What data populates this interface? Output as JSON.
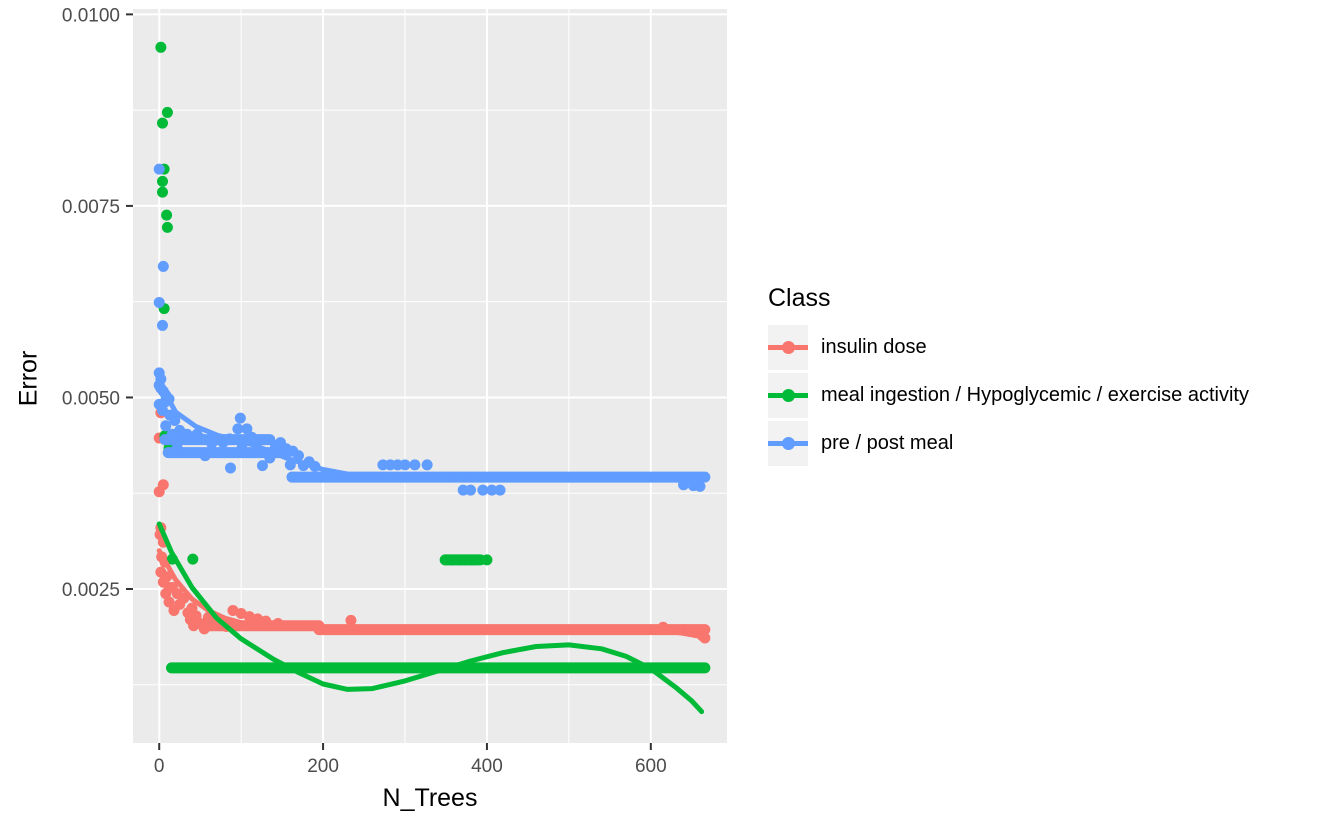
{
  "chart_data": {
    "type": "scatter",
    "title": "",
    "xlabel": "N_Trees",
    "ylabel": "Error",
    "x_ticks": [
      0,
      200,
      400,
      600
    ],
    "x_minor": [
      100,
      300,
      500
    ],
    "y_ticks": [
      0.0025,
      0.005,
      0.0075,
      0.01
    ],
    "y_tick_labels": [
      "0.0025",
      "0.0050",
      "0.0075",
      "0.0100"
    ],
    "y_minor": [
      0.00125,
      0.00375,
      0.00625,
      0.00875
    ],
    "xlim": [
      -32,
      693
    ],
    "ylim": [
      0.00049,
      0.01007
    ],
    "grid": true,
    "panel_bg": "#EBEBEB",
    "grid_color": "#FFFFFF",
    "tick_color": "#333333",
    "tick_label_color": "#4D4D4D",
    "legend": {
      "title": "Class",
      "position": "right",
      "entries": [
        {
          "label": "insulin dose",
          "color": "#F8766D"
        },
        {
          "label": "meal ingestion / Hypoglycemic / exercise activity",
          "color": "#00BA38"
        },
        {
          "label": "pre / post meal",
          "color": "#619CFF"
        }
      ]
    },
    "series": [
      {
        "name": "insulin dose",
        "color": "#F8766D",
        "points": [
          [
            2,
            0.0048
          ],
          [
            0,
            0.00447
          ],
          [
            5,
            0.00386
          ],
          [
            0,
            0.00377
          ],
          [
            2,
            0.0033
          ],
          [
            1,
            0.00321
          ],
          [
            5,
            0.00311
          ],
          [
            3,
            0.00292
          ],
          [
            7,
            0.00285
          ],
          [
            2,
            0.00272
          ],
          [
            9,
            0.00266
          ],
          [
            5,
            0.00259
          ],
          [
            12,
            0.00252
          ],
          [
            16,
            0.00252
          ],
          [
            8,
            0.00244
          ],
          [
            22,
            0.00244
          ],
          [
            12,
            0.00233
          ],
          [
            25,
            0.0023
          ],
          [
            30,
            0.00238
          ],
          [
            18,
            0.00222
          ],
          [
            40,
            0.00225
          ],
          [
            35,
            0.00219
          ],
          [
            45,
            0.00215
          ],
          [
            38,
            0.0021
          ],
          [
            42,
            0.00202
          ],
          [
            50,
            0.00205
          ],
          [
            55,
            0.00198
          ],
          [
            60,
            0.00213
          ],
          [
            68,
            0.00209
          ],
          [
            75,
            0.00205
          ],
          [
            82,
            0.00201
          ],
          [
            90,
            0.00222
          ],
          [
            100,
            0.00218
          ],
          [
            110,
            0.00214
          ],
          [
            120,
            0.00211
          ],
          [
            130,
            0.00208
          ],
          [
            145,
            0.00205
          ],
          [
            234,
            0.00209
          ],
          [
            615,
            0.002
          ],
          [
            640,
            0.00197
          ],
          [
            655,
            0.00193
          ],
          [
            663,
            0.00189
          ],
          [
            666,
            0.00186
          ]
        ],
        "dense_runs": [
          {
            "x1": 59,
            "x2": 195,
            "y": 0.00202
          },
          {
            "x1": 195,
            "x2": 666,
            "y": 0.00197
          }
        ],
        "smooth": [
          [
            0,
            0.003
          ],
          [
            20,
            0.00262
          ],
          [
            40,
            0.00237
          ],
          [
            60,
            0.00222
          ],
          [
            80,
            0.00212
          ],
          [
            100,
            0.00206
          ],
          [
            130,
            0.00201
          ],
          [
            160,
            0.00199
          ],
          [
            200,
            0.00198
          ],
          [
            260,
            0.00197
          ],
          [
            340,
            0.00197
          ],
          [
            420,
            0.00198
          ],
          [
            500,
            0.00199
          ],
          [
            560,
            0.00198
          ],
          [
            600,
            0.00196
          ],
          [
            635,
            0.00193
          ],
          [
            662,
            0.00188
          ]
        ]
      },
      {
        "name": "meal ingestion / Hypoglycemic / exercise activity",
        "color": "#00BA38",
        "points": [
          [
            2,
            0.00957
          ],
          [
            10,
            0.00872
          ],
          [
            4,
            0.00858
          ],
          [
            6,
            0.00798
          ],
          [
            4,
            0.00782
          ],
          [
            4,
            0.00768
          ],
          [
            9,
            0.00738
          ],
          [
            10,
            0.00722
          ],
          [
            6,
            0.00616
          ],
          [
            7,
            0.0045
          ],
          [
            12,
            0.00434
          ],
          [
            16,
            0.00289
          ],
          [
            41,
            0.00289
          ],
          [
            350,
            0.00288
          ],
          [
            358,
            0.00288
          ],
          [
            366,
            0.00288
          ],
          [
            374,
            0.00288
          ],
          [
            382,
            0.00288
          ],
          [
            400,
            0.00288
          ]
        ],
        "dense_runs": [
          {
            "x1": 15,
            "x2": 666,
            "y": 0.00147
          },
          {
            "x1": 349,
            "x2": 392,
            "y": 0.00288
          }
        ],
        "smooth": [
          [
            0,
            0.00335
          ],
          [
            15,
            0.00298
          ],
          [
            40,
            0.00252
          ],
          [
            70,
            0.00212
          ],
          [
            100,
            0.00185
          ],
          [
            140,
            0.00158
          ],
          [
            170,
            0.00141
          ],
          [
            200,
            0.00126
          ],
          [
            230,
            0.00119
          ],
          [
            260,
            0.0012
          ],
          [
            300,
            0.0013
          ],
          [
            340,
            0.00143
          ],
          [
            380,
            0.00156
          ],
          [
            420,
            0.00167
          ],
          [
            460,
            0.00175
          ],
          [
            500,
            0.00177
          ],
          [
            540,
            0.00172
          ],
          [
            570,
            0.00162
          ],
          [
            600,
            0.00146
          ],
          [
            630,
            0.00122
          ],
          [
            650,
            0.00104
          ],
          [
            662,
            0.0009
          ]
        ]
      },
      {
        "name": "pre / post meal",
        "color": "#619CFF",
        "points": [
          [
            0,
            0.00798
          ],
          [
            5,
            0.00671
          ],
          [
            0,
            0.00624
          ],
          [
            4,
            0.00594
          ],
          [
            0,
            0.00532
          ],
          [
            2,
            0.00524
          ],
          [
            0,
            0.00516
          ],
          [
            2,
            0.00512
          ],
          [
            5,
            0.00508
          ],
          [
            8,
            0.00503
          ],
          [
            12,
            0.00498
          ],
          [
            7,
            0.00494
          ],
          [
            0,
            0.00491
          ],
          [
            4,
            0.00483
          ],
          [
            13,
            0.00477
          ],
          [
            19,
            0.0047
          ],
          [
            8,
            0.00463
          ],
          [
            25,
            0.00457
          ],
          [
            16,
            0.00452
          ],
          [
            29,
            0.00448
          ],
          [
            34,
            0.00452
          ],
          [
            40,
            0.00446
          ],
          [
            46,
            0.00452
          ],
          [
            52,
            0.00446
          ],
          [
            22,
            0.00434
          ],
          [
            56,
            0.00424
          ],
          [
            64,
            0.0044
          ],
          [
            70,
            0.00445
          ],
          [
            78,
            0.00441
          ],
          [
            86,
            0.00446
          ],
          [
            87,
            0.00408
          ],
          [
            96,
            0.00459
          ],
          [
            99,
            0.00473
          ],
          [
            107,
            0.00459
          ],
          [
            101,
            0.00434
          ],
          [
            113,
            0.00448
          ],
          [
            117,
            0.00428
          ],
          [
            126,
            0.00411
          ],
          [
            135,
            0.00421
          ],
          [
            142,
            0.00437
          ],
          [
            148,
            0.00441
          ],
          [
            155,
            0.00433
          ],
          [
            160,
            0.00412
          ],
          [
            163,
            0.0043
          ],
          [
            170,
            0.00424
          ],
          [
            176,
            0.00411
          ],
          [
            183,
            0.00416
          ],
          [
            190,
            0.0041
          ],
          [
            273,
            0.00412
          ],
          [
            282,
            0.00412
          ],
          [
            291,
            0.00412
          ],
          [
            300,
            0.00412
          ],
          [
            312,
            0.00412
          ],
          [
            327,
            0.00412
          ],
          [
            371,
            0.00379
          ],
          [
            380,
            0.00379
          ],
          [
            395,
            0.00379
          ],
          [
            406,
            0.00379
          ],
          [
            416,
            0.00379
          ],
          [
            640,
            0.00386
          ],
          [
            652,
            0.00385
          ],
          [
            660,
            0.00384
          ]
        ],
        "dense_runs": [
          {
            "x1": 7,
            "x2": 135,
            "y": 0.00445
          },
          {
            "x1": 11,
            "x2": 156,
            "y": 0.00428
          },
          {
            "x1": 162,
            "x2": 666,
            "y": 0.00396
          }
        ],
        "smooth": [
          [
            0,
            0.0052
          ],
          [
            20,
            0.00481
          ],
          [
            45,
            0.00462
          ],
          [
            70,
            0.00451
          ],
          [
            95,
            0.00444
          ],
          [
            115,
            0.00438
          ],
          [
            135,
            0.0043
          ],
          [
            155,
            0.00421
          ],
          [
            175,
            0.00414
          ],
          [
            200,
            0.00406
          ],
          [
            230,
            0.004
          ],
          [
            260,
            0.00397
          ],
          [
            300,
            0.00396
          ],
          [
            400,
            0.00395
          ],
          [
            500,
            0.00395
          ],
          [
            600,
            0.00395
          ],
          [
            664,
            0.00395
          ]
        ]
      }
    ]
  }
}
